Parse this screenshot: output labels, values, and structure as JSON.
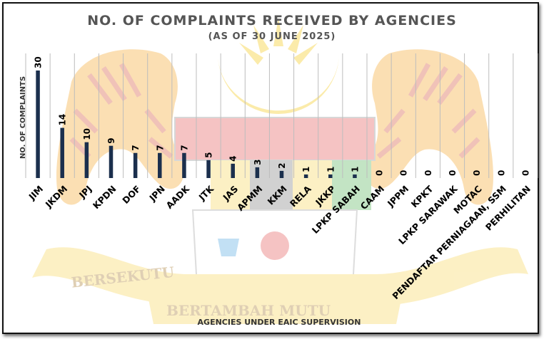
{
  "chart_data": {
    "type": "bar",
    "title": "NO. OF COMPLAINTS RECEIVED BY AGENCIES",
    "subtitle": "(AS OF 30 JUNE 2025)",
    "xlabel": "AGENCIES UNDER EAIC SUPERVISION",
    "ylabel": "NO. OF COMPLAINTS",
    "categories": [
      "JIM",
      "JKDM",
      "JPJ",
      "KPDN",
      "DOF",
      "JPN",
      "AADK",
      "JTK",
      "JAS",
      "APMM",
      "KKM",
      "RELA",
      "JKKP",
      "LPKP SABAH",
      "CAAM",
      "JPPM",
      "KPKT",
      "LPKP SARAWAK",
      "MOTAC",
      "PENDAFTAR PERNIAGAAN, SSM",
      "PERHILITAN"
    ],
    "values": [
      30,
      14,
      10,
      9,
      7,
      7,
      7,
      5,
      4,
      3,
      2,
      1,
      1,
      1,
      0,
      0,
      0,
      0,
      0,
      0,
      0
    ],
    "ylim": [
      0,
      30
    ],
    "grid": "vertical",
    "legend": "none",
    "bar_color": "#1b2f4d"
  },
  "background": {
    "watermark_text_1": "BERSEKUTU",
    "watermark_text_2": "BERTAMBAH MUTU"
  },
  "colors": {
    "tiger_orange": "#f4a01c",
    "tiger_stripe": "#d24a2a",
    "ribbon_yellow": "#f6d24e",
    "shield_red": "#e34b4b",
    "shield_green": "#4caf50",
    "moon_yellow": "#f5c400"
  }
}
